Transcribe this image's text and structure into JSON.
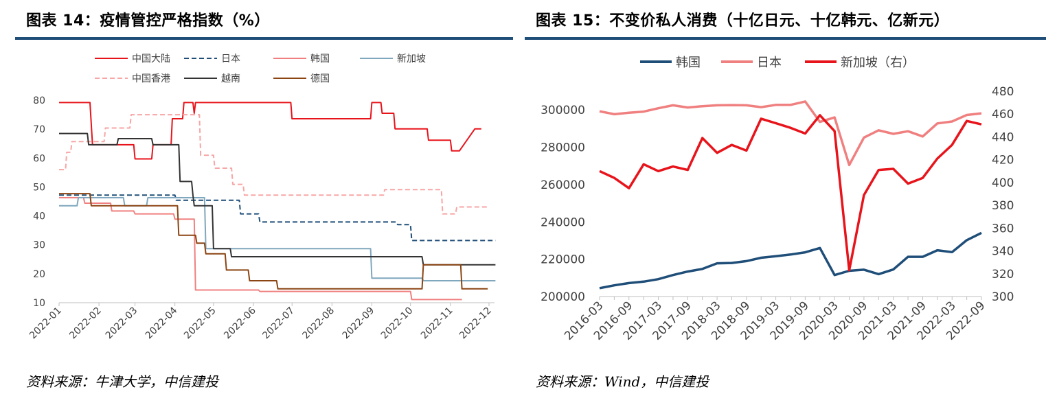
{
  "left": {
    "title": "图表 14：疫情管控严格指数（%）",
    "source": "资料来源：牛津大学，中信建投",
    "chart_data": {
      "type": "line",
      "x_type": "date",
      "x_ticks": [
        "2022-01",
        "2022-02",
        "2022-03",
        "2022-04",
        "2022-05",
        "2022-06",
        "2022-07",
        "2022-08",
        "2022-09",
        "2022-10",
        "2022-11",
        "2022-12"
      ],
      "ylim": [
        10,
        80
      ],
      "y_ticks": [
        10,
        20,
        30,
        40,
        50,
        60,
        70,
        80
      ],
      "grid": false,
      "legend_position": "top",
      "series": [
        {
          "name": "中国大陆",
          "color": "#e8141b",
          "dash": "",
          "points": [
            [
              "2022-01-01",
              79.2
            ],
            [
              "2022-01-25",
              79.2
            ],
            [
              "2022-01-27",
              64.6
            ],
            [
              "2022-02-28",
              64.6
            ],
            [
              "2022-03-01",
              59.7
            ],
            [
              "2022-03-14",
              59.7
            ],
            [
              "2022-03-15",
              64.6
            ],
            [
              "2022-03-29",
              64.6
            ],
            [
              "2022-03-30",
              73.6
            ],
            [
              "2022-04-07",
              73.6
            ],
            [
              "2022-04-08",
              79.2
            ],
            [
              "2022-04-15",
              79.2
            ],
            [
              "2022-04-16",
              75.5
            ],
            [
              "2022-04-17",
              79.2
            ],
            [
              "2022-06-30",
              79.2
            ],
            [
              "2022-07-01",
              73.6
            ],
            [
              "2022-08-31",
              73.6
            ],
            [
              "2022-09-01",
              79.2
            ],
            [
              "2022-09-08",
              79.2
            ],
            [
              "2022-09-09",
              75.5
            ],
            [
              "2022-09-18",
              75.5
            ],
            [
              "2022-09-19",
              70.1
            ],
            [
              "2022-10-14",
              70.1
            ],
            [
              "2022-10-15",
              66.2
            ],
            [
              "2022-11-01",
              66.2
            ],
            [
              "2022-11-02",
              62.5
            ],
            [
              "2022-11-08",
              62.5
            ],
            [
              "2022-11-20",
              70.1
            ],
            [
              "2022-11-25",
              70.1
            ]
          ]
        },
        {
          "name": "日本",
          "color": "#1f4e79",
          "dash": "7,4",
          "points": [
            [
              "2022-01-01",
              47.2
            ],
            [
              "2022-04-01",
              47.2
            ],
            [
              "2022-04-02",
              45.4
            ],
            [
              "2022-05-21",
              45.4
            ],
            [
              "2022-05-22",
              40.7
            ],
            [
              "2022-06-05",
              40.7
            ],
            [
              "2022-06-06",
              37.9
            ],
            [
              "2022-09-20",
              37.9
            ],
            [
              "2022-09-21",
              37.0
            ],
            [
              "2022-10-01",
              37.0
            ],
            [
              "2022-10-02",
              31.5
            ],
            [
              "2022-12-06",
              31.5
            ]
          ]
        },
        {
          "name": "韩国",
          "color": "#f08080",
          "dash": "",
          "points": [
            [
              "2022-01-01",
              46.3
            ],
            [
              "2022-01-20",
              46.3
            ],
            [
              "2022-01-21",
              44.4
            ],
            [
              "2022-02-10",
              44.4
            ],
            [
              "2022-02-11",
              41.7
            ],
            [
              "2022-02-28",
              41.7
            ],
            [
              "2022-03-01",
              40.7
            ],
            [
              "2022-03-31",
              40.7
            ],
            [
              "2022-04-01",
              38.9
            ],
            [
              "2022-04-16",
              38.9
            ],
            [
              "2022-04-17",
              14.4
            ],
            [
              "2022-06-05",
              14.4
            ],
            [
              "2022-06-06",
              13.9
            ],
            [
              "2022-10-01",
              13.9
            ],
            [
              "2022-10-02",
              11.1
            ],
            [
              "2022-11-10",
              11.1
            ]
          ]
        },
        {
          "name": "新加坡",
          "color": "#7fa7bd",
          "dash": "",
          "points": [
            [
              "2022-01-01",
              43.5
            ],
            [
              "2022-01-15",
              43.5
            ],
            [
              "2022-01-16",
              46.3
            ],
            [
              "2022-02-20",
              46.3
            ],
            [
              "2022-02-21",
              43.5
            ],
            [
              "2022-03-10",
              43.5
            ],
            [
              "2022-03-11",
              46.3
            ],
            [
              "2022-04-24",
              46.3
            ],
            [
              "2022-04-25",
              28.7
            ],
            [
              "2022-08-31",
              28.7
            ],
            [
              "2022-09-01",
              18.5
            ],
            [
              "2022-10-10",
              18.5
            ],
            [
              "2022-10-11",
              17.6
            ],
            [
              "2022-12-06",
              17.6
            ]
          ]
        },
        {
          "name": "中国香港",
          "color": "#f7a5a5",
          "dash": "7,4",
          "points": [
            [
              "2022-01-01",
              56.0
            ],
            [
              "2022-01-06",
              56.0
            ],
            [
              "2022-01-07",
              62.0
            ],
            [
              "2022-01-10",
              62.0
            ],
            [
              "2022-01-11",
              65.7
            ],
            [
              "2022-02-05",
              65.7
            ],
            [
              "2022-02-06",
              70.4
            ],
            [
              "2022-02-25",
              70.4
            ],
            [
              "2022-02-26",
              75.0
            ],
            [
              "2022-04-20",
              75.0
            ],
            [
              "2022-04-21",
              61.0
            ],
            [
              "2022-05-01",
              61.0
            ],
            [
              "2022-05-02",
              56.5
            ],
            [
              "2022-05-15",
              56.5
            ],
            [
              "2022-05-16",
              50.9
            ],
            [
              "2022-05-24",
              50.9
            ],
            [
              "2022-05-25",
              47.2
            ],
            [
              "2022-09-10",
              47.2
            ],
            [
              "2022-09-11",
              49.1
            ],
            [
              "2022-10-25",
              49.1
            ],
            [
              "2022-10-26",
              40.7
            ],
            [
              "2022-11-05",
              40.7
            ],
            [
              "2022-11-06",
              43.1
            ],
            [
              "2022-11-30",
              43.1
            ]
          ]
        },
        {
          "name": "越南",
          "color": "#333333",
          "dash": "",
          "points": [
            [
              "2022-01-01",
              68.5
            ],
            [
              "2022-01-23",
              68.5
            ],
            [
              "2022-01-24",
              64.6
            ],
            [
              "2022-02-15",
              64.6
            ],
            [
              "2022-02-16",
              66.7
            ],
            [
              "2022-03-14",
              66.7
            ],
            [
              "2022-03-15",
              64.6
            ],
            [
              "2022-04-04",
              64.6
            ],
            [
              "2022-04-05",
              51.9
            ],
            [
              "2022-04-14",
              51.9
            ],
            [
              "2022-04-15",
              47.2
            ],
            [
              "2022-04-16",
              43.5
            ],
            [
              "2022-04-30",
              43.5
            ],
            [
              "2022-05-01",
              28.7
            ],
            [
              "2022-05-14",
              28.7
            ],
            [
              "2022-05-15",
              25.9
            ],
            [
              "2022-10-10",
              25.9
            ],
            [
              "2022-10-11",
              23.1
            ],
            [
              "2022-12-06",
              23.1
            ]
          ]
        },
        {
          "name": "德国",
          "color": "#8b4513",
          "dash": "",
          "points": [
            [
              "2022-01-01",
              47.7
            ],
            [
              "2022-01-25",
              47.7
            ],
            [
              "2022-01-26",
              43.5
            ],
            [
              "2022-04-03",
              43.5
            ],
            [
              "2022-04-04",
              33.3
            ],
            [
              "2022-04-17",
              33.3
            ],
            [
              "2022-04-18",
              30.6
            ],
            [
              "2022-04-24",
              30.6
            ],
            [
              "2022-04-25",
              26.9
            ],
            [
              "2022-05-10",
              26.9
            ],
            [
              "2022-05-11",
              21.3
            ],
            [
              "2022-05-28",
              21.3
            ],
            [
              "2022-05-29",
              17.6
            ],
            [
              "2022-06-19",
              17.6
            ],
            [
              "2022-06-20",
              14.8
            ],
            [
              "2022-10-10",
              14.8
            ],
            [
              "2022-10-11",
              23.1
            ],
            [
              "2022-11-09",
              23.1
            ],
            [
              "2022-11-10",
              14.8
            ],
            [
              "2022-11-30",
              14.8
            ]
          ]
        }
      ]
    }
  },
  "right": {
    "title": "图表 15：不变价私人消费（十亿日元、十亿韩元、亿新元）",
    "source": "资料来源：Wind，中信建投",
    "chart_data": {
      "type": "line",
      "categories": [
        "2016-03",
        "2016-06",
        "2016-09",
        "2016-12",
        "2017-03",
        "2017-06",
        "2017-09",
        "2017-12",
        "2018-03",
        "2018-06",
        "2018-09",
        "2018-12",
        "2019-03",
        "2019-06",
        "2019-09",
        "2019-12",
        "2020-03",
        "2020-06",
        "2020-09",
        "2020-12",
        "2021-03",
        "2021-06",
        "2021-09",
        "2021-12",
        "2022-03",
        "2022-06",
        "2022-09"
      ],
      "x_tick_labels": [
        "2016-03",
        "2016-09",
        "2017-03",
        "2017-09",
        "2018-03",
        "2018-09",
        "2019-03",
        "2019-09",
        "2020-03",
        "2020-09",
        "2021-03",
        "2021-09",
        "2022-03",
        "2022-09"
      ],
      "ylim_left": [
        200000,
        310000
      ],
      "y_ticks_left": [
        200000,
        220000,
        240000,
        260000,
        280000,
        300000
      ],
      "ylim_right": [
        300,
        480
      ],
      "y_ticks_right": [
        300,
        320,
        340,
        360,
        380,
        400,
        420,
        440,
        460,
        480
      ],
      "grid": false,
      "legend_position": "top",
      "series": [
        {
          "name": "韩国",
          "axis": "left",
          "color": "#1f4e79",
          "values": [
            204500,
            206000,
            207200,
            208000,
            209300,
            211500,
            213400,
            214800,
            217800,
            218000,
            219000,
            220800,
            221600,
            222500,
            223700,
            226000,
            211500,
            213800,
            214400,
            212000,
            214500,
            221300,
            221300,
            224800,
            223800,
            230200,
            234100
          ]
        },
        {
          "name": "日本",
          "axis": "left",
          "color": "#f08080",
          "values": [
            299300,
            297700,
            298500,
            299100,
            300900,
            302500,
            301300,
            302000,
            302500,
            302600,
            302500,
            301500,
            302700,
            302700,
            304500,
            293600,
            296000,
            270500,
            285200,
            289100,
            287200,
            288600,
            285800,
            292800,
            293800,
            297300,
            298200
          ]
        },
        {
          "name": "新加坡（右）",
          "axis": "right",
          "color": "#e8141b",
          "values": [
            410,
            404,
            395,
            416,
            410,
            414,
            411,
            439,
            426,
            433,
            428,
            456,
            452,
            448,
            443,
            459,
            445,
            323,
            389,
            411,
            412,
            399,
            404,
            421,
            433,
            454,
            451
          ]
        }
      ]
    }
  }
}
